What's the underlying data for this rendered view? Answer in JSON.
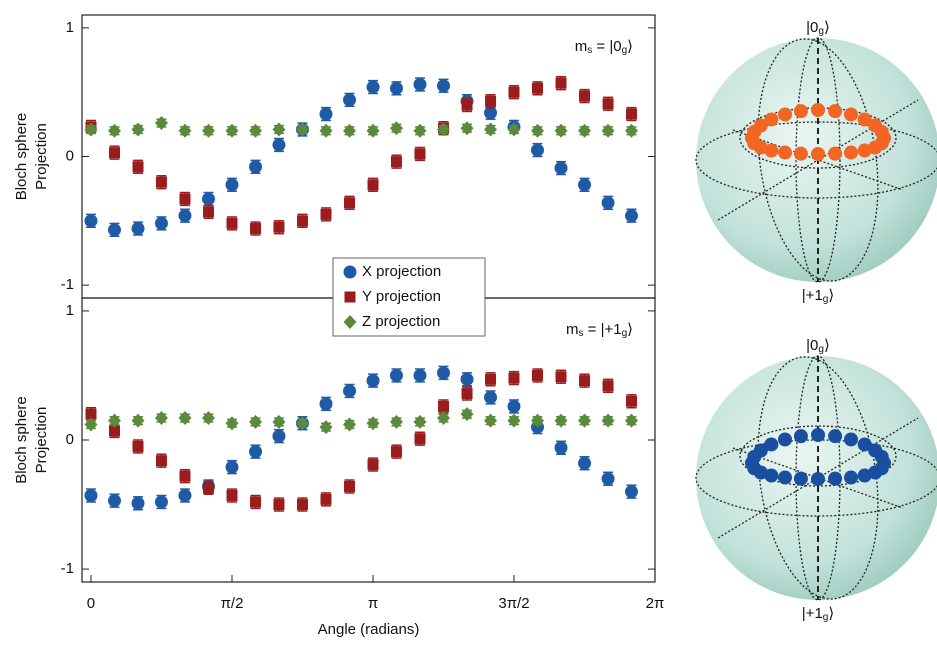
{
  "chart_data": [
    {
      "type": "scatter",
      "ylabel": [
        "Bloch sphere",
        "Projection"
      ],
      "annotation": [
        "m",
        "s",
        " = |0",
        "g",
        "⟩"
      ],
      "x": [
        0,
        0.262,
        0.524,
        0.785,
        1.047,
        1.309,
        1.571,
        1.833,
        2.094,
        2.356,
        2.618,
        2.88,
        3.142,
        3.403,
        3.665,
        3.927,
        4.189,
        4.451,
        4.712,
        4.974,
        5.236,
        5.498,
        5.76,
        6.021
      ],
      "xlim": [
        -0.1,
        6.283
      ],
      "ylim": [
        -1.1,
        1.1
      ],
      "yticks": [
        1,
        0,
        -1
      ],
      "series": [
        {
          "name": "X projection",
          "color": "#1f5aa6",
          "marker": "circle",
          "error": 0.05,
          "values": [
            -0.5,
            -0.57,
            -0.56,
            -0.52,
            -0.46,
            -0.33,
            -0.22,
            -0.08,
            0.09,
            0.21,
            0.33,
            0.44,
            0.54,
            0.53,
            0.56,
            0.55,
            0.43,
            0.34,
            0.23,
            0.05,
            -0.09,
            -0.22,
            -0.36,
            -0.46
          ]
        },
        {
          "name": "Y projection",
          "color": "#9b1c1c",
          "marker": "square",
          "error": 0.05,
          "values": [
            0.23,
            0.03,
            -0.08,
            -0.2,
            -0.33,
            -0.43,
            -0.52,
            -0.56,
            -0.55,
            -0.5,
            -0.45,
            -0.36,
            -0.22,
            -0.04,
            0.02,
            0.22,
            0.4,
            0.43,
            0.5,
            0.53,
            0.57,
            0.47,
            0.41,
            0.33
          ]
        },
        {
          "name": "Z projection",
          "color": "#5b8a3c",
          "marker": "diamond",
          "error": 0.03,
          "values": [
            0.21,
            0.2,
            0.21,
            0.26,
            0.2,
            0.2,
            0.2,
            0.2,
            0.21,
            0.21,
            0.2,
            0.2,
            0.2,
            0.22,
            0.2,
            0.21,
            0.22,
            0.21,
            0.21,
            0.2,
            0.2,
            0.2,
            0.2,
            0.2
          ]
        }
      ]
    },
    {
      "type": "scatter",
      "ylabel": [
        "Bloch sphere",
        "Projection"
      ],
      "annotation": [
        "m",
        "s",
        " = |+1",
        "g",
        "⟩"
      ],
      "xlabel": "Angle (radians)",
      "x": [
        0,
        0.262,
        0.524,
        0.785,
        1.047,
        1.309,
        1.571,
        1.833,
        2.094,
        2.356,
        2.618,
        2.88,
        3.142,
        3.403,
        3.665,
        3.927,
        4.189,
        4.451,
        4.712,
        4.974,
        5.236,
        5.498,
        5.76,
        6.021
      ],
      "xlim": [
        -0.1,
        6.283
      ],
      "ylim": [
        -1.1,
        1.1
      ],
      "yticks": [
        1,
        0,
        -1
      ],
      "xticks": [
        0,
        {
          "value": 1.571,
          "label": "π/2"
        },
        {
          "value": 3.142,
          "label": "π"
        },
        {
          "value": 4.712,
          "label": "3π/2"
        },
        {
          "value": 6.283,
          "label": "2π"
        }
      ],
      "series": [
        {
          "color": "#1f5aa6",
          "marker": "circle",
          "error": 0.05,
          "values": [
            -0.43,
            -0.47,
            -0.49,
            -0.48,
            -0.43,
            -0.36,
            -0.21,
            -0.09,
            0.03,
            0.13,
            0.28,
            0.38,
            0.46,
            0.5,
            0.5,
            0.52,
            0.47,
            0.33,
            0.26,
            0.1,
            -0.06,
            -0.18,
            -0.3,
            -0.4
          ]
        },
        {
          "color": "#9b1c1c",
          "marker": "square",
          "error": 0.05,
          "values": [
            0.2,
            0.07,
            -0.05,
            -0.16,
            -0.28,
            -0.37,
            -0.43,
            -0.48,
            -0.5,
            -0.5,
            -0.46,
            -0.36,
            -0.19,
            -0.09,
            0.01,
            0.26,
            0.36,
            0.47,
            0.48,
            0.5,
            0.49,
            0.46,
            0.42,
            0.3
          ]
        },
        {
          "color": "#5b8a3c",
          "marker": "diamond",
          "error": 0.03,
          "values": [
            0.12,
            0.15,
            0.15,
            0.17,
            0.17,
            0.17,
            0.13,
            0.14,
            0.14,
            0.13,
            0.1,
            0.12,
            0.13,
            0.14,
            0.14,
            0.17,
            0.2,
            0.15,
            0.15,
            0.15,
            0.15,
            0.15,
            0.15,
            0.15
          ]
        }
      ]
    }
  ],
  "spheres": [
    {
      "top": [
        "|0",
        "g",
        "⟩"
      ],
      "bottom": [
        "|+1",
        "g",
        "⟩"
      ],
      "dot_color": "#f26522"
    },
    {
      "top": [
        "|0",
        "g",
        "⟩"
      ],
      "bottom": [
        "|+1",
        "g",
        "⟩"
      ],
      "dot_color": "#1a4fa0"
    }
  ]
}
